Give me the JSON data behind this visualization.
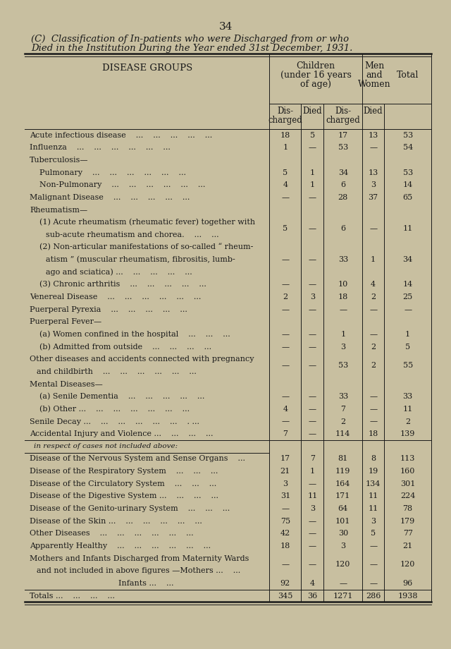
{
  "page_number": "34",
  "title_line1": "(C)  Classification of In-patients who were Discharged from or who",
  "title_line2": "Died in the Institution During the Year ended 31st December, 1931.",
  "bg_color": "#c8bfa0",
  "text_color": "#1a1a1a",
  "rows": [
    {
      "label": "Acute infectious disease    ...    ...    ...    ...    ...",
      "indent": 0,
      "c_dis": "18",
      "c_died": "5",
      "mw_dis": "17",
      "mw_died": "13",
      "total": "53"
    },
    {
      "label": "Influenza    ...    ...    ...    ...    ...    ...",
      "indent": 0,
      "c_dis": "1",
      "c_died": "—",
      "mw_dis": "53",
      "mw_died": "—",
      "total": "54"
    },
    {
      "label": "Tuberculosis—",
      "indent": 0,
      "c_dis": "",
      "c_died": "",
      "mw_dis": "",
      "mw_died": "",
      "total": ""
    },
    {
      "label": "Pulmonary    ...    ...    ...    ...    ...    ...",
      "indent": 1,
      "c_dis": "5",
      "c_died": "1",
      "mw_dis": "34",
      "mw_died": "13",
      "total": "53"
    },
    {
      "label": "Non-Pulmonary    ...    ...    ...    ...    ...    ...",
      "indent": 1,
      "c_dis": "4",
      "c_died": "1",
      "mw_dis": "6",
      "mw_died": "3",
      "total": "14"
    },
    {
      "label": "Malignant Disease    ...    ...    ...    ...    ...",
      "indent": 0,
      "c_dis": "—",
      "c_died": "—",
      "mw_dis": "28",
      "mw_died": "37",
      "total": "65"
    },
    {
      "label": "Rheumatism—",
      "indent": 0,
      "c_dis": "",
      "c_died": "",
      "mw_dis": "",
      "mw_died": "",
      "total": ""
    },
    {
      "label": "(1) Acute rheumatism (rheumatic fever) together with",
      "label2": "        sub-acute rheumatism and chorea.    ...    ...",
      "indent": 1,
      "c_dis": "5",
      "c_died": "—",
      "mw_dis": "6",
      "mw_died": "—",
      "total": "11",
      "multiline": true
    },
    {
      "label": "(2) Non-articular manifestations of so-called “ rheum-",
      "label2": "        atism ” (muscular rheumatism, fibrositis, lumb-",
      "label3": "        ago and sciatica) ...    ...    ...    ...    ...",
      "indent": 1,
      "c_dis": "—",
      "c_died": "—",
      "mw_dis": "33",
      "mw_died": "1",
      "total": "34",
      "multiline": true,
      "lines": 3
    },
    {
      "label": "(3) Chronic arthritis    ...    ...    ...    ...    ...",
      "indent": 1,
      "c_dis": "—",
      "c_died": "—",
      "mw_dis": "10",
      "mw_died": "4",
      "total": "14"
    },
    {
      "label": "Venereal Disease    ...    ...    ...    ...    ...    ...",
      "indent": 0,
      "c_dis": "2",
      "c_died": "3",
      "mw_dis": "18",
      "mw_died": "2",
      "total": "25"
    },
    {
      "label": "Puerperal Pyrexia    ...    ...    ...    ...    ...",
      "indent": 0,
      "c_dis": "—",
      "c_died": "—",
      "mw_dis": "—",
      "mw_died": "—",
      "total": "—"
    },
    {
      "label": "Puerperal Fever—",
      "indent": 0,
      "c_dis": "",
      "c_died": "",
      "mw_dis": "",
      "mw_died": "",
      "total": ""
    },
    {
      "label": "(a) Women confined in the hospital    ...    ...    ...",
      "indent": 1,
      "c_dis": "—",
      "c_died": "—",
      "mw_dis": "1",
      "mw_died": "—",
      "total": "1"
    },
    {
      "label": "(b) Admitted from outside    ...    ...    ...    ...",
      "indent": 1,
      "c_dis": "—",
      "c_died": "—",
      "mw_dis": "3",
      "mw_died": "2",
      "total": "5"
    },
    {
      "label": "Other diseases and accidents connected with pregnancy",
      "label2": "    and childbirth    ...    ...    ...    ...    ...    ...",
      "indent": 0,
      "c_dis": "—",
      "c_died": "—",
      "mw_dis": "53",
      "mw_died": "2",
      "total": "55",
      "multiline": true
    },
    {
      "label": "Mental Diseases—",
      "indent": 0,
      "c_dis": "",
      "c_died": "",
      "mw_dis": "",
      "mw_died": "",
      "total": ""
    },
    {
      "label": "(a) Senile Dementia    ...    ...    ...    ...    ...",
      "indent": 1,
      "c_dis": "—",
      "c_died": "—",
      "mw_dis": "33",
      "mw_died": "—",
      "total": "33"
    },
    {
      "label": "(b) Other ...    ...    ...    ...    ...    ...    ...",
      "indent": 1,
      "c_dis": "4",
      "c_died": "—",
      "mw_dis": "7",
      "mw_died": "—",
      "total": "11"
    },
    {
      "label": "Senile Decay ...    ...    ...    ...    ...    ...    . ...",
      "indent": 0,
      "c_dis": "—",
      "c_died": "—",
      "mw_dis": "2",
      "mw_died": "—",
      "total": "2"
    },
    {
      "label": "Accidental Injury and Violence ...    ...    ...    ...",
      "indent": 0,
      "c_dis": "7",
      "c_died": "—",
      "mw_dis": "114",
      "mw_died": "18",
      "total": "139",
      "section_end": true
    },
    {
      "label": "in respect of cases not included above:",
      "indent": 0,
      "c_dis": "",
      "c_died": "",
      "mw_dis": "",
      "mw_died": "",
      "total": "",
      "section_header": true
    },
    {
      "label": "Disease of the Nervous System and Sense Organs    ...",
      "indent": 0,
      "c_dis": "17",
      "c_died": "7",
      "mw_dis": "81",
      "mw_died": "8",
      "total": "113"
    },
    {
      "label": "Disease of the Respiratory System    ...    ...    ...",
      "indent": 0,
      "c_dis": "21",
      "c_died": "1",
      "mw_dis": "119",
      "mw_died": "19",
      "total": "160"
    },
    {
      "label": "Disease of the Circulatory System    ...    ...    ...",
      "indent": 0,
      "c_dis": "3",
      "c_died": "—",
      "mw_dis": "164",
      "mw_died": "134",
      "total": "301"
    },
    {
      "label": "Disease of the Digestive System ...    ...    ...    ...",
      "indent": 0,
      "c_dis": "31",
      "c_died": "11",
      "mw_dis": "171",
      "mw_died": "11",
      "total": "224"
    },
    {
      "label": "Disease of the Genito-urinary System    ...    ...    ...",
      "indent": 0,
      "c_dis": "—",
      "c_died": "3",
      "mw_dis": "64",
      "mw_died": "11",
      "total": "78"
    },
    {
      "label": "Disease of the Skin ...    ...    ...    ...    ...    ...",
      "indent": 0,
      "c_dis": "75",
      "c_died": "—",
      "mw_dis": "101",
      "mw_died": "3",
      "total": "179"
    },
    {
      "label": "Other Diseases    ...    ...    ...    ...    ...    ...",
      "indent": 0,
      "c_dis": "42",
      "c_died": "—",
      "mw_dis": "30",
      "mw_died": "5",
      "total": "77"
    },
    {
      "label": "Apparently Healthy    ...    ...    ...    ...    ...    ...",
      "indent": 0,
      "c_dis": "18",
      "c_died": "—",
      "mw_dis": "3",
      "mw_died": "—",
      "total": "21"
    },
    {
      "label": "Mothers and Infants Discharged from Maternity Wards",
      "label2": "    and not included in above figures —Mothers ...    ...",
      "indent": 0,
      "c_dis": "—",
      "c_died": "—",
      "mw_dis": "120",
      "mw_died": "—",
      "total": "120",
      "multiline": true
    },
    {
      "label": "                                    Infants ...    ...",
      "indent": 0,
      "c_dis": "92",
      "c_died": "4",
      "mw_dis": "—",
      "mw_died": "—",
      "total": "96"
    },
    {
      "label": "Totals ...    ...    ...    ...",
      "indent": 0,
      "c_dis": "345",
      "c_died": "36",
      "mw_dis": "1271",
      "mw_died": "286",
      "total": "1938",
      "totals_row": true
    }
  ]
}
